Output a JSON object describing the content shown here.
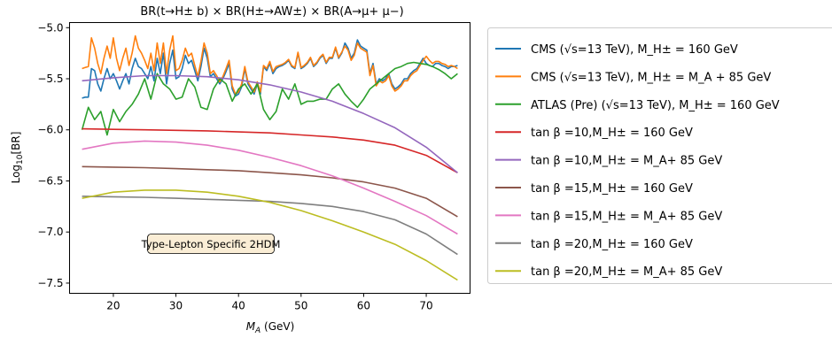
{
  "chart_data": {
    "type": "line",
    "title": "BR(t→H± b) × BR(H±→AW±) × BR(A→μ+ μ−)",
    "xlabel": "M_A (GeV)",
    "ylabel": "Log10[BR]",
    "xlim": [
      13,
      77
    ],
    "ylim": [
      -7.6,
      -4.95
    ],
    "xticks": [
      20,
      30,
      40,
      50,
      60,
      70
    ],
    "yticks": [
      -5.0,
      -5.5,
      -6.0,
      -6.5,
      -7.0,
      -7.5
    ],
    "xtick_labels": [
      "20",
      "30",
      "40",
      "50",
      "60",
      "70"
    ],
    "ytick_labels": [
      "−5.0",
      "−5.5",
      "−6.0",
      "−6.5",
      "−7.0",
      "−7.5"
    ],
    "grid": false,
    "legend_position": "right (outside plot)",
    "annotation": "Type-Lepton Specific 2HDM",
    "series": [
      {
        "name": "CMS (√s=13 TeV), M_H± = 160 GeV",
        "color": "#1f77b4",
        "x": [
          15,
          15.5,
          16,
          16.5,
          17,
          17.5,
          18,
          18.5,
          19,
          19.5,
          20,
          20.5,
          21,
          21.5,
          22,
          22.5,
          23,
          23.5,
          24,
          24.5,
          25,
          25.5,
          26,
          26.5,
          27,
          27.5,
          28,
          28.5,
          29,
          29.5,
          30,
          30.5,
          31,
          31.5,
          32,
          32.5,
          33,
          33.5,
          34,
          34.5,
          35,
          35.5,
          36,
          36.5,
          37,
          37.5,
          38,
          38.5,
          39,
          39.5,
          40,
          40.5,
          41,
          41.5,
          42,
          42.5,
          43,
          43.5,
          44,
          44.5,
          45,
          45.5,
          46,
          46.5,
          47,
          47.5,
          48,
          48.5,
          49,
          49.5,
          50,
          50.5,
          51,
          51.5,
          52,
          52.5,
          53,
          53.5,
          54,
          54.5,
          55,
          55.5,
          56,
          56.5,
          57,
          57.5,
          58,
          58.5,
          59,
          59.5,
          60,
          60.5,
          61,
          61.5,
          62,
          62.5,
          63,
          63.5,
          64,
          64.5,
          65,
          65.5,
          66,
          66.5,
          67,
          67.5,
          68,
          68.5,
          69,
          69.5,
          70,
          70.5,
          71,
          71.5,
          72,
          72.5,
          73,
          73.5,
          74,
          74.5,
          75
        ],
        "y": [
          -5.69,
          -5.68,
          -5.68,
          -5.4,
          -5.42,
          -5.55,
          -5.62,
          -5.5,
          -5.4,
          -5.5,
          -5.45,
          -5.52,
          -5.6,
          -5.52,
          -5.45,
          -5.55,
          -5.4,
          -5.3,
          -5.38,
          -5.4,
          -5.45,
          -5.5,
          -5.38,
          -5.52,
          -5.3,
          -5.45,
          -5.25,
          -5.55,
          -5.35,
          -5.22,
          -5.5,
          -5.48,
          -5.4,
          -5.27,
          -5.35,
          -5.32,
          -5.42,
          -5.52,
          -5.38,
          -5.2,
          -5.3,
          -5.48,
          -5.45,
          -5.5,
          -5.55,
          -5.5,
          -5.43,
          -5.35,
          -5.6,
          -5.67,
          -5.65,
          -5.58,
          -5.4,
          -5.55,
          -5.6,
          -5.65,
          -5.55,
          -5.65,
          -5.38,
          -5.42,
          -5.35,
          -5.45,
          -5.4,
          -5.38,
          -5.37,
          -5.35,
          -5.32,
          -5.38,
          -5.4,
          -5.25,
          -5.4,
          -5.38,
          -5.35,
          -5.3,
          -5.38,
          -5.35,
          -5.3,
          -5.27,
          -5.35,
          -5.3,
          -5.3,
          -5.2,
          -5.3,
          -5.25,
          -5.15,
          -5.2,
          -5.3,
          -5.25,
          -5.12,
          -5.18,
          -5.2,
          -5.22,
          -5.45,
          -5.35,
          -5.55,
          -5.5,
          -5.52,
          -5.5,
          -5.45,
          -5.55,
          -5.6,
          -5.58,
          -5.55,
          -5.5,
          -5.5,
          -5.45,
          -5.42,
          -5.4,
          -5.35,
          -5.3,
          -5.35,
          -5.37,
          -5.38,
          -5.35,
          -5.35,
          -5.37,
          -5.38,
          -5.4,
          -5.38,
          -5.38,
          -5.37
        ]
      },
      {
        "name": "CMS (√s=13 TeV), M_H± = M_A + 85 GeV",
        "color": "#ff7f0e",
        "x": [
          15,
          15.5,
          16,
          16.5,
          17,
          17.5,
          18,
          18.5,
          19,
          19.5,
          20,
          20.5,
          21,
          21.5,
          22,
          22.5,
          23,
          23.5,
          24,
          24.5,
          25,
          25.5,
          26,
          26.5,
          27,
          27.5,
          28,
          28.5,
          29,
          29.5,
          30,
          30.5,
          31,
          31.5,
          32,
          32.5,
          33,
          33.5,
          34,
          34.5,
          35,
          35.5,
          36,
          36.5,
          37,
          37.5,
          38,
          38.5,
          39,
          39.5,
          40,
          40.5,
          41,
          41.5,
          42,
          42.5,
          43,
          43.5,
          44,
          44.5,
          45,
          45.5,
          46,
          46.5,
          47,
          47.5,
          48,
          48.5,
          49,
          49.5,
          50,
          50.5,
          51,
          51.5,
          52,
          52.5,
          53,
          53.5,
          54,
          54.5,
          55,
          55.5,
          56,
          56.5,
          57,
          57.5,
          58,
          58.5,
          59,
          59.5,
          60,
          60.5,
          61,
          61.5,
          62,
          62.5,
          63,
          63.5,
          64,
          64.5,
          65,
          65.5,
          66,
          66.5,
          67,
          67.5,
          68,
          68.5,
          69,
          69.5,
          70,
          70.5,
          71,
          71.5,
          72,
          72.5,
          73,
          73.5,
          74,
          74.5,
          75
        ],
        "y": [
          -5.4,
          -5.39,
          -5.38,
          -5.1,
          -5.2,
          -5.35,
          -5.45,
          -5.3,
          -5.18,
          -5.3,
          -5.1,
          -5.3,
          -5.42,
          -5.3,
          -5.2,
          -5.37,
          -5.25,
          -5.08,
          -5.2,
          -5.25,
          -5.32,
          -5.4,
          -5.25,
          -5.42,
          -5.15,
          -5.35,
          -5.15,
          -5.45,
          -5.22,
          -5.08,
          -5.42,
          -5.4,
          -5.32,
          -5.2,
          -5.28,
          -5.25,
          -5.37,
          -5.48,
          -5.33,
          -5.15,
          -5.25,
          -5.45,
          -5.42,
          -5.47,
          -5.53,
          -5.48,
          -5.4,
          -5.32,
          -5.57,
          -5.65,
          -5.63,
          -5.55,
          -5.38,
          -5.53,
          -5.58,
          -5.63,
          -5.53,
          -5.63,
          -5.37,
          -5.4,
          -5.33,
          -5.43,
          -5.38,
          -5.37,
          -5.36,
          -5.34,
          -5.31,
          -5.37,
          -5.39,
          -5.24,
          -5.39,
          -5.37,
          -5.34,
          -5.29,
          -5.37,
          -5.34,
          -5.29,
          -5.26,
          -5.34,
          -5.29,
          -5.29,
          -5.19,
          -5.29,
          -5.24,
          -5.18,
          -5.22,
          -5.32,
          -5.27,
          -5.15,
          -5.2,
          -5.22,
          -5.24,
          -5.47,
          -5.37,
          -5.57,
          -5.52,
          -5.54,
          -5.52,
          -5.47,
          -5.57,
          -5.62,
          -5.6,
          -5.57,
          -5.52,
          -5.52,
          -5.47,
          -5.44,
          -5.42,
          -5.37,
          -5.32,
          -5.28,
          -5.32,
          -5.35,
          -5.33,
          -5.33,
          -5.35,
          -5.36,
          -5.38,
          -5.37,
          -5.38,
          -5.4
        ]
      },
      {
        "name": "ATLAS (Pre) (√s=13 TeV), M_H± = 160 GeV",
        "color": "#2ca02c",
        "x": [
          15,
          16,
          17,
          18,
          19,
          20,
          21,
          22,
          23,
          24,
          25,
          26,
          27,
          28,
          29,
          30,
          31,
          32,
          33,
          34,
          35,
          36,
          37,
          38,
          39,
          40,
          41,
          42,
          43,
          44,
          45,
          46,
          47,
          48,
          49,
          50,
          51,
          52,
          53,
          54,
          55,
          56,
          57,
          58,
          59,
          60,
          61,
          62,
          63,
          64,
          65,
          66,
          67,
          68,
          69,
          70,
          71,
          72,
          73,
          74,
          75
        ],
        "y": [
          -6.0,
          -5.78,
          -5.9,
          -5.82,
          -6.05,
          -5.8,
          -5.92,
          -5.82,
          -5.75,
          -5.65,
          -5.5,
          -5.7,
          -5.45,
          -5.55,
          -5.6,
          -5.7,
          -5.68,
          -5.5,
          -5.58,
          -5.78,
          -5.8,
          -5.6,
          -5.5,
          -5.55,
          -5.72,
          -5.6,
          -5.55,
          -5.65,
          -5.55,
          -5.8,
          -5.9,
          -5.82,
          -5.6,
          -5.7,
          -5.55,
          -5.75,
          -5.72,
          -5.72,
          -5.7,
          -5.7,
          -5.6,
          -5.55,
          -5.65,
          -5.72,
          -5.78,
          -5.7,
          -5.6,
          -5.55,
          -5.5,
          -5.45,
          -5.4,
          -5.38,
          -5.35,
          -5.34,
          -5.35,
          -5.36,
          -5.38,
          -5.41,
          -5.45,
          -5.5,
          -5.45
        ]
      },
      {
        "name": "tan β =10,M_H± = 160 GeV",
        "color": "#d62728",
        "x": [
          15,
          20,
          25,
          30,
          35,
          40,
          45,
          50,
          55,
          60,
          65,
          70,
          75
        ],
        "y": [
          -5.99,
          -5.995,
          -6.0,
          -6.005,
          -6.01,
          -6.02,
          -6.03,
          -6.05,
          -6.07,
          -6.1,
          -6.15,
          -6.25,
          -6.42
        ]
      },
      {
        "name": "tan β =10,M_H± = M_A+ 85 GeV",
        "color": "#9467bd",
        "x": [
          15,
          20,
          25,
          30,
          35,
          40,
          45,
          50,
          55,
          60,
          65,
          70,
          75
        ],
        "y": [
          -5.52,
          -5.49,
          -5.47,
          -5.47,
          -5.48,
          -5.51,
          -5.56,
          -5.63,
          -5.72,
          -5.84,
          -5.98,
          -6.17,
          -6.42
        ]
      },
      {
        "name": "tan β =15,M_H± = 160 GeV",
        "color": "#8c564b",
        "x": [
          15,
          20,
          25,
          30,
          35,
          40,
          45,
          50,
          55,
          60,
          65,
          70,
          75
        ],
        "y": [
          -6.36,
          -6.365,
          -6.37,
          -6.38,
          -6.39,
          -6.4,
          -6.42,
          -6.44,
          -6.47,
          -6.51,
          -6.57,
          -6.67,
          -6.85
        ]
      },
      {
        "name": "tan β =15,M_H± = M_A+ 85 GeV",
        "color": "#e377c2",
        "x": [
          15,
          20,
          25,
          30,
          35,
          40,
          45,
          50,
          55,
          60,
          65,
          70,
          75
        ],
        "y": [
          -6.19,
          -6.13,
          -6.11,
          -6.12,
          -6.15,
          -6.2,
          -6.27,
          -6.35,
          -6.45,
          -6.57,
          -6.7,
          -6.84,
          -7.02
        ]
      },
      {
        "name": "tan β =20,M_H± = 160 GeV",
        "color": "#7f7f7f",
        "x": [
          15,
          20,
          25,
          30,
          35,
          40,
          45,
          50,
          55,
          60,
          65,
          70,
          75
        ],
        "y": [
          -6.65,
          -6.655,
          -6.66,
          -6.67,
          -6.68,
          -6.69,
          -6.7,
          -6.72,
          -6.75,
          -6.8,
          -6.88,
          -7.02,
          -7.22
        ]
      },
      {
        "name": "tan β =20,M_H± = M_A+ 85 GeV",
        "color": "#bcbd22",
        "x": [
          15,
          20,
          25,
          30,
          35,
          40,
          45,
          50,
          55,
          60,
          65,
          70,
          75
        ],
        "y": [
          -6.67,
          -6.61,
          -6.59,
          -6.59,
          -6.61,
          -6.65,
          -6.71,
          -6.79,
          -6.89,
          -7.0,
          -7.12,
          -7.28,
          -7.47
        ]
      }
    ]
  }
}
